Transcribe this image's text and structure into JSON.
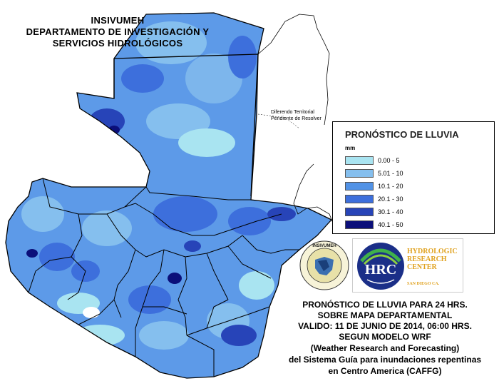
{
  "header": {
    "line1": "INSIVUMEH",
    "line2": "DEPARTAMENTO DE INVESTIGACIÓN Y",
    "line3": "SERVICIOS HIDROLÓGICOS"
  },
  "territorial_note": {
    "line1": "Diferendo Territorial",
    "line2": "Pendiente de Resolver"
  },
  "legend": {
    "title": "PRONÓSTICO DE LLUVIA",
    "unit": "mm",
    "classes": [
      {
        "label": "0.00 - 5",
        "color": "#a9e4f1"
      },
      {
        "label": "5.01 - 10",
        "color": "#85bfee"
      },
      {
        "label": "10.1 - 20",
        "color": "#5192e6"
      },
      {
        "label": "20.1 - 30",
        "color": "#3d6fdc"
      },
      {
        "label": "30.1 - 40",
        "color": "#2744b8"
      },
      {
        "label": "40.1 - 50",
        "color": "#0b0f7a"
      }
    ]
  },
  "logos": {
    "insivumeh": "INSIVUMEH",
    "hrc_mark": "HRC",
    "hrc_line1": "HYDROLOGIC",
    "hrc_line2": "RESEARCH",
    "hrc_line3": "CENTER",
    "hrc_city": "SAN DIEGO CA."
  },
  "caption": [
    "PRONÓSTICO DE LLUVIA PARA 24 HRS.",
    "SOBRE MAPA DEPARTAMENTAL",
    "VALIDO: 11 DE JUNIO DE 2014, 06:00 HRS.",
    "SEGUN MODELO WRF",
    "(Weather Research and Forecasting)",
    "del Sistema Guía para inundaciones repentinas",
    "en Centro America (CAFFG)"
  ]
}
